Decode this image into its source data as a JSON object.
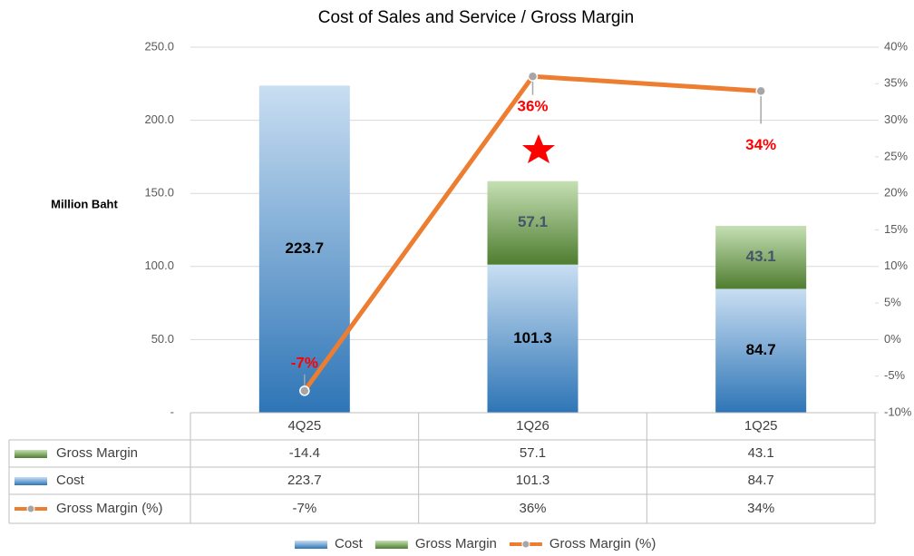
{
  "chart_data": {
    "type": "bar",
    "title": "Cost of Sales and Service / Gross Margin",
    "y_label": "Million Baht",
    "categories": [
      "4Q25",
      "1Q26",
      "1Q25"
    ],
    "stacked": true,
    "series": [
      {
        "name": "Cost",
        "color": "#5b9bd5",
        "values": [
          223.7,
          101.3,
          84.7
        ]
      },
      {
        "name": "Gross Margin",
        "color": "#70ad47",
        "values": [
          -14.4,
          57.1,
          43.1
        ]
      },
      {
        "name": "Gross Margin (%)",
        "type": "line",
        "axis": "y2",
        "color": "#ed7d31",
        "values": [
          -7,
          36,
          34
        ],
        "value_labels": [
          "-7%",
          "36%",
          "34%"
        ],
        "label_color": "#ff0000"
      }
    ],
    "ylim": [
      0,
      250
    ],
    "yticks": [
      {
        "value": 0,
        "label": "-"
      },
      {
        "value": 50,
        "label": "50.0"
      },
      {
        "value": 100,
        "label": "100.0"
      },
      {
        "value": 150,
        "label": "150.0"
      },
      {
        "value": 200,
        "label": "200.0"
      },
      {
        "value": 250,
        "label": "250.0"
      }
    ],
    "y2lim": [
      -10,
      40
    ],
    "y2ticks": [
      {
        "value": -10,
        "label": "-10%"
      },
      {
        "value": -5,
        "label": "-5%"
      },
      {
        "value": 0,
        "label": "0%"
      },
      {
        "value": 5,
        "label": "5%"
      },
      {
        "value": 10,
        "label": "10%"
      },
      {
        "value": 15,
        "label": "15%"
      },
      {
        "value": 20,
        "label": "20%"
      },
      {
        "value": 25,
        "label": "25%"
      },
      {
        "value": 30,
        "label": "30%"
      },
      {
        "value": 35,
        "label": "35%"
      },
      {
        "value": 40,
        "label": "40%"
      }
    ],
    "grid": true,
    "legend": "bottom"
  }
}
